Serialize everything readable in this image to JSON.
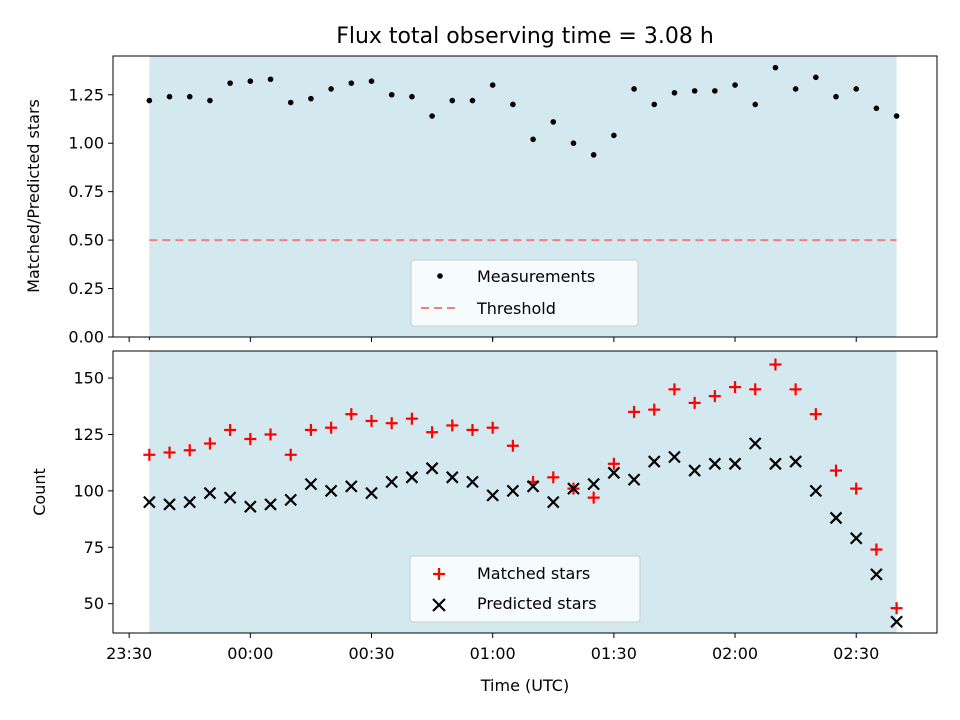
{
  "title": "Flux total observing time = 3.08 h",
  "x_axis": {
    "label": "Time (UTC)",
    "tick_labels": [
      "23:30",
      "00:00",
      "00:30",
      "01:00",
      "01:30",
      "02:00",
      "02:30"
    ],
    "tick_minutes": [
      -30,
      0,
      30,
      60,
      90,
      120,
      150
    ],
    "range_minutes": [
      -34,
      170
    ],
    "minor_tick_minutes": [
      -25,
      60
    ]
  },
  "colors": {
    "span": "#d3e9ef",
    "measurements": "#000000",
    "threshold": "#f08080",
    "matched": "#ff0000",
    "predicted": "#000000"
  },
  "chart_data": [
    {
      "type": "scatter",
      "ylabel": "Matched/Predicted stars",
      "ylim": [
        0,
        1.45
      ],
      "y_ticks": [
        0.0,
        0.25,
        0.5,
        0.75,
        1.0,
        1.25
      ],
      "y_tick_labels": [
        "0.00",
        "0.25",
        "0.50",
        "0.75",
        "1.00",
        "1.25"
      ],
      "observing_span_minutes": [
        -25,
        160
      ],
      "threshold": 0.5,
      "legend": {
        "position": "lower center",
        "entries": [
          "Measurements",
          "Threshold"
        ]
      },
      "series": [
        {
          "name": "Measurements",
          "x_minutes": [
            -25,
            -20,
            -15,
            -10,
            -5,
            0,
            5,
            10,
            15,
            20,
            25,
            30,
            35,
            40,
            45,
            50,
            55,
            60,
            65,
            70,
            75,
            80,
            85,
            90,
            95,
            100,
            105,
            110,
            115,
            120,
            125,
            130,
            135,
            140,
            145,
            150,
            155,
            160
          ],
          "values": [
            1.22,
            1.24,
            1.24,
            1.22,
            1.31,
            1.32,
            1.33,
            1.21,
            1.23,
            1.28,
            1.31,
            1.32,
            1.25,
            1.24,
            1.14,
            1.22,
            1.22,
            1.3,
            1.2,
            1.02,
            1.11,
            1.0,
            0.94,
            1.04,
            1.28,
            1.2,
            1.26,
            1.27,
            1.27,
            1.3,
            1.2,
            1.39,
            1.28,
            1.34,
            1.24,
            1.28,
            1.18,
            1.14
          ]
        }
      ]
    },
    {
      "type": "scatter",
      "ylabel": "Count",
      "ylim": [
        37,
        162
      ],
      "y_ticks": [
        50,
        75,
        100,
        125,
        150
      ],
      "y_tick_labels": [
        "50",
        "75",
        "100",
        "125",
        "150"
      ],
      "observing_span_minutes": [
        -25,
        160
      ],
      "legend": {
        "position": "lower center",
        "entries": [
          "Matched stars",
          "Predicted stars"
        ]
      },
      "series": [
        {
          "name": "Matched stars",
          "marker": "+",
          "x_minutes": [
            -25,
            -20,
            -15,
            -10,
            -5,
            0,
            5,
            10,
            15,
            20,
            25,
            30,
            35,
            40,
            45,
            50,
            55,
            60,
            65,
            70,
            75,
            80,
            85,
            90,
            95,
            100,
            105,
            110,
            115,
            120,
            125,
            130,
            135,
            140,
            145,
            150,
            155,
            160
          ],
          "values": [
            116,
            117,
            118,
            121,
            127,
            123,
            125,
            116,
            127,
            128,
            134,
            131,
            130,
            132,
            126,
            129,
            127,
            128,
            120,
            104,
            106,
            101,
            97,
            112,
            135,
            136,
            145,
            139,
            142,
            146,
            145,
            156,
            145,
            134,
            109,
            101,
            74,
            48
          ]
        },
        {
          "name": "Predicted stars",
          "marker": "x",
          "x_minutes": [
            -25,
            -20,
            -15,
            -10,
            -5,
            0,
            5,
            10,
            15,
            20,
            25,
            30,
            35,
            40,
            45,
            50,
            55,
            60,
            65,
            70,
            75,
            80,
            85,
            90,
            95,
            100,
            105,
            110,
            115,
            120,
            125,
            130,
            135,
            140,
            145,
            150,
            155,
            160
          ],
          "values": [
            95,
            94,
            95,
            99,
            97,
            93,
            94,
            96,
            103,
            100,
            102,
            99,
            104,
            106,
            110,
            106,
            104,
            98,
            100,
            102,
            95,
            101,
            103,
            108,
            105,
            113,
            115,
            109,
            112,
            112,
            121,
            112,
            113,
            100,
            88,
            79,
            63,
            42
          ]
        }
      ]
    }
  ]
}
